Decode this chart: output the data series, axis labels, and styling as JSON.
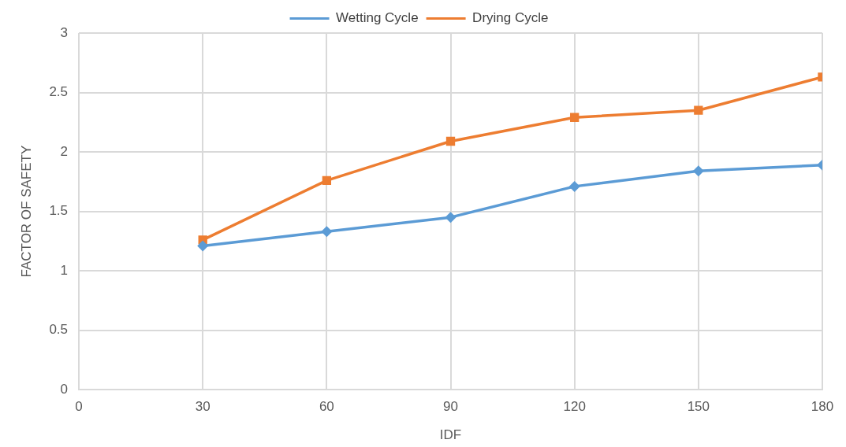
{
  "chart_data": {
    "type": "line",
    "xlabel": "IDF",
    "ylabel": "FACTOR OF SAFETY",
    "x": [
      30,
      60,
      90,
      120,
      150,
      180
    ],
    "series": [
      {
        "name": "Wetting Cycle",
        "color": "#5b9bd5",
        "marker": "diamond",
        "values": [
          1.21,
          1.33,
          1.45,
          1.71,
          1.84,
          1.89
        ]
      },
      {
        "name": "Drying Cycle",
        "color": "#ed7d31",
        "marker": "square",
        "values": [
          1.26,
          1.76,
          2.09,
          2.29,
          2.35,
          2.63
        ]
      }
    ],
    "xlim": [
      0,
      180
    ],
    "xticks": [
      0,
      30,
      60,
      90,
      120,
      150,
      180
    ],
    "ylim": [
      0,
      3
    ],
    "yticks": [
      0,
      0.5,
      1,
      1.5,
      2,
      2.5,
      3
    ],
    "grid": true,
    "legend": "top",
    "line_style": "solid"
  }
}
